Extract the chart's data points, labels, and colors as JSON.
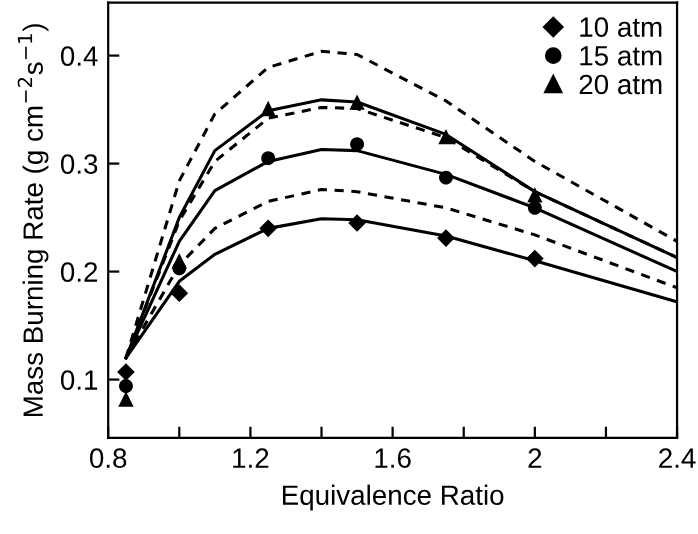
{
  "chart_data": {
    "type": "scatter",
    "xlabel": "Equivalence Ratio",
    "ylabel": "Mass Burning Rate (g cm$^{−2}$s$^{−1}$)",
    "xlim": [
      0.8,
      2.4
    ],
    "ylim": [
      0.046,
      0.449
    ],
    "xticks": [
      0.8,
      {
        "value": 1.0,
        "label": null
      },
      1.2,
      {
        "value": 1.4,
        "label": null
      },
      1.6,
      {
        "value": 1.8,
        "label": null
      },
      2,
      {
        "value": 2.2,
        "label": null
      },
      2.4
    ],
    "yticks": [
      0.1,
      0.2,
      0.3,
      0.4
    ],
    "grid": false,
    "legend": "top right",
    "series": [
      {
        "name": "10 atm",
        "color": "#000000",
        "marker": "diamond",
        "x": [
          0.85,
          1.0,
          1.25,
          1.5,
          1.75,
          2.0
        ],
        "values": [
          0.107,
          0.18,
          0.24,
          0.245,
          0.231,
          0.212
        ]
      },
      {
        "name": "15 atm",
        "color": "#000000",
        "marker": "circle",
        "x": [
          0.85,
          1.0,
          1.25,
          1.5,
          1.75,
          2.0
        ],
        "values": [
          0.094,
          0.203,
          0.305,
          0.318,
          0.287,
          0.259
        ]
      },
      {
        "name": "20 atm",
        "color": "#000000",
        "marker": "triangle",
        "x": [
          0.85,
          1.0,
          1.25,
          1.5,
          1.75,
          2.0
        ],
        "values": [
          0.082,
          0.21,
          0.351,
          0.357,
          0.325,
          0.271
        ]
      },
      {
        "type": "line",
        "color": "#000000",
        "line_style": "solid",
        "marker": "none",
        "x": [
          0.85,
          1.0,
          1.1,
          1.25,
          1.4,
          1.5,
          1.75,
          2.0,
          2.4
        ],
        "values": [
          0.12,
          0.191,
          0.216,
          0.24,
          0.249,
          0.248,
          0.233,
          0.21,
          0.172
        ]
      },
      {
        "type": "line",
        "color": "#000000",
        "line_style": "solid",
        "marker": "none",
        "x": [
          0.85,
          1.0,
          1.1,
          1.25,
          1.4,
          1.5,
          1.75,
          2.0,
          2.4
        ],
        "values": [
          0.12,
          0.228,
          0.275,
          0.302,
          0.313,
          0.312,
          0.29,
          0.259,
          0.2
        ]
      },
      {
        "type": "line",
        "color": "#000000",
        "line_style": "solid",
        "marker": "none",
        "x": [
          0.85,
          1.0,
          1.1,
          1.25,
          1.4,
          1.5,
          1.75,
          2.0,
          2.4
        ],
        "values": [
          0.12,
          0.25,
          0.312,
          0.349,
          0.359,
          0.357,
          0.327,
          0.274,
          0.213
        ]
      },
      {
        "type": "line",
        "color": "#000000",
        "line_style": "dashed",
        "marker": "none",
        "x": [
          0.85,
          1.0,
          1.1,
          1.25,
          1.4,
          1.5,
          1.75,
          2.0,
          2.4
        ],
        "values": [
          0.12,
          0.206,
          0.24,
          0.265,
          0.276,
          0.274,
          0.259,
          0.234,
          0.185
        ]
      },
      {
        "type": "line",
        "color": "#000000",
        "line_style": "dashed",
        "marker": "none",
        "x": [
          0.85,
          1.0,
          1.1,
          1.25,
          1.4,
          1.5,
          1.75,
          2.0,
          2.4
        ],
        "values": [
          0.12,
          0.247,
          0.302,
          0.342,
          0.352,
          0.351,
          0.324,
          0.274,
          0.213
        ]
      },
      {
        "type": "line",
        "color": "#000000",
        "line_style": "dashed",
        "marker": "none",
        "x": [
          0.85,
          1.0,
          1.1,
          1.25,
          1.4,
          1.5,
          1.75,
          2.0,
          2.4
        ],
        "values": [
          0.12,
          0.284,
          0.346,
          0.389,
          0.404,
          0.401,
          0.358,
          0.302,
          0.228
        ]
      }
    ]
  }
}
